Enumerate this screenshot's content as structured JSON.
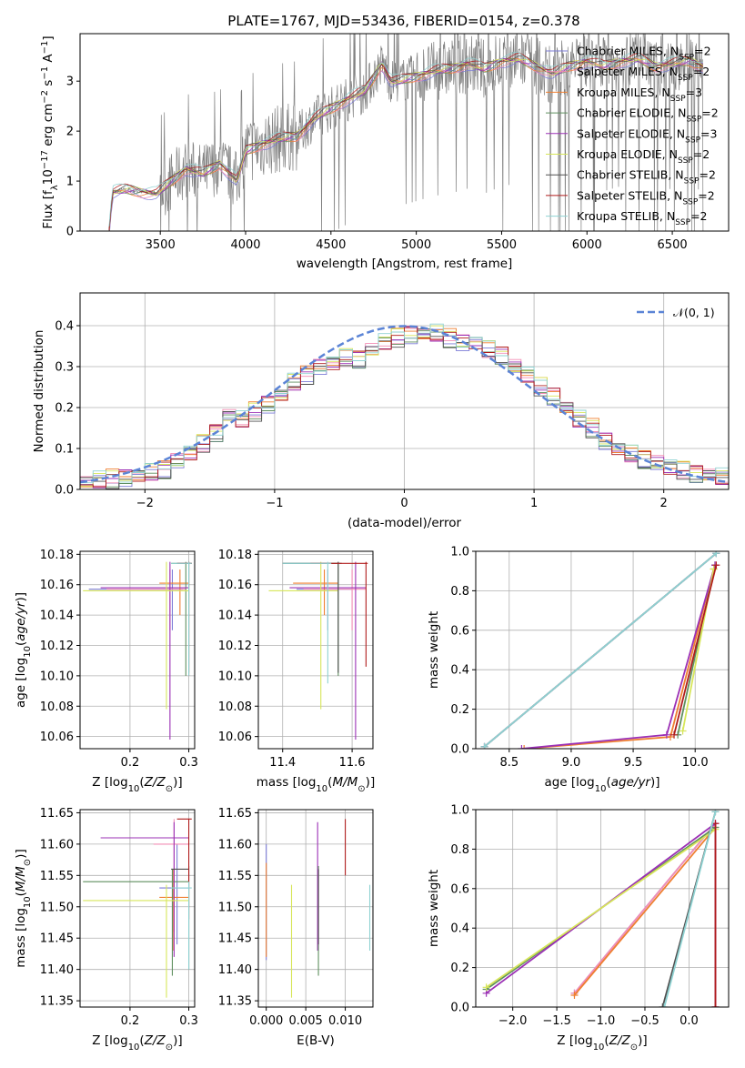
{
  "title": "PLATE=1767, MJD=53436, FIBERID=0154, z=0.378",
  "colors": {
    "Chabrier MILES": "#7b7bd6",
    "Salpeter MILES": "#f28db5",
    "Kroupa MILES": "#ef7f30",
    "Chabrier ELODIE": "#5f8f5f",
    "Salpeter ELODIE": "#9b30b5",
    "Kroupa ELODIE": "#d7e65a",
    "Chabrier STELIB": "#505050",
    "Salpeter STELIB": "#b01c1c",
    "Kroupa STELIB": "#8fd2d2",
    "data": "#808080",
    "gaussian": "#5b84d6"
  },
  "legend_models": [
    {
      "name": "Chabrier MILES",
      "nssp": "2"
    },
    {
      "name": "Salpeter MILES",
      "nssp": "2"
    },
    {
      "name": "Kroupa MILES",
      "nssp": "3"
    },
    {
      "name": "Chabrier ELODIE",
      "nssp": "2"
    },
    {
      "name": "Salpeter ELODIE",
      "nssp": "3"
    },
    {
      "name": "Kroupa ELODIE",
      "nssp": "2"
    },
    {
      "name": "Chabrier STELIB",
      "nssp": "2"
    },
    {
      "name": "Salpeter STELIB",
      "nssp": "2"
    },
    {
      "name": "Kroupa STELIB",
      "nssp": "2"
    }
  ],
  "chart_data": [
    {
      "id": "spectrum",
      "type": "line",
      "xlabel": "wavelength [Angstrom, rest frame]",
      "ylabel": "Flux [f_λ10^-17 erg cm^-2 s^-1 A^-1]",
      "xlim": [
        3030,
        6830
      ],
      "ylim": [
        0,
        3.95
      ],
      "xticks": [
        3500,
        4000,
        4500,
        5000,
        5500,
        6000,
        6500
      ],
      "yticks": [
        0,
        1,
        2,
        3
      ],
      "grid": false,
      "legend_position": "right",
      "continuum": [
        [
          3200,
          0.0
        ],
        [
          3220,
          0.78
        ],
        [
          3300,
          0.83
        ],
        [
          3400,
          0.78
        ],
        [
          3480,
          0.75
        ],
        [
          3550,
          0.95
        ],
        [
          3650,
          1.25
        ],
        [
          3750,
          1.15
        ],
        [
          3850,
          1.35
        ],
        [
          3950,
          1.0
        ],
        [
          4000,
          1.6
        ],
        [
          4100,
          1.75
        ],
        [
          4200,
          1.85
        ],
        [
          4300,
          1.9
        ],
        [
          4400,
          2.25
        ],
        [
          4500,
          2.45
        ],
        [
          4600,
          2.65
        ],
        [
          4700,
          2.8
        ],
        [
          4800,
          3.35
        ],
        [
          4850,
          3.0
        ],
        [
          4900,
          3.0
        ],
        [
          5000,
          3.1
        ],
        [
          5100,
          3.2
        ],
        [
          5200,
          3.25
        ],
        [
          5300,
          3.35
        ],
        [
          5400,
          3.25
        ],
        [
          5500,
          3.4
        ],
        [
          5600,
          3.45
        ],
        [
          5700,
          3.3
        ],
        [
          5800,
          3.15
        ],
        [
          5900,
          3.3
        ],
        [
          6000,
          3.4
        ],
        [
          6100,
          3.3
        ],
        [
          6200,
          3.4
        ],
        [
          6300,
          3.45
        ],
        [
          6400,
          3.3
        ],
        [
          6500,
          3.35
        ],
        [
          6600,
          3.4
        ],
        [
          6680,
          3.3
        ]
      ]
    },
    {
      "id": "residuals",
      "type": "line",
      "xlabel": "(data-model)/error",
      "ylabel": "Normed distribution",
      "xlim": [
        -2.5,
        2.5
      ],
      "ylim": [
        0,
        0.48
      ],
      "xticks": [
        -2,
        -1,
        0,
        1,
        2
      ],
      "yticks": [
        0.0,
        0.1,
        0.2,
        0.3,
        0.4
      ],
      "grid": true,
      "legend_position": "top-right",
      "gaussian_label": "𝒩(0, 1)",
      "bin_edges": [
        -2.5,
        -2.4,
        -2.3,
        -2.2,
        -2.1,
        -2.0,
        -1.9,
        -1.8,
        -1.7,
        -1.6,
        -1.5,
        -1.4,
        -1.3,
        -1.2,
        -1.1,
        -1.0,
        -0.9,
        -0.8,
        -0.7,
        -0.6,
        -0.5,
        -0.4,
        -0.3,
        -0.2,
        -0.1,
        0.0,
        0.1,
        0.2,
        0.3,
        0.4,
        0.5,
        0.6,
        0.7,
        0.8,
        0.9,
        1.0,
        1.1,
        1.2,
        1.3,
        1.4,
        1.5,
        1.6,
        1.7,
        1.8,
        1.9,
        2.0,
        2.1,
        2.2,
        2.3,
        2.4,
        2.5
      ],
      "hist_base": [
        0.018,
        0.022,
        0.026,
        0.03,
        0.034,
        0.04,
        0.05,
        0.07,
        0.09,
        0.11,
        0.14,
        0.18,
        0.17,
        0.19,
        0.21,
        0.23,
        0.26,
        0.28,
        0.3,
        0.31,
        0.32,
        0.32,
        0.34,
        0.36,
        0.37,
        0.38,
        0.38,
        0.38,
        0.37,
        0.36,
        0.36,
        0.34,
        0.33,
        0.3,
        0.28,
        0.25,
        0.23,
        0.2,
        0.17,
        0.15,
        0.12,
        0.1,
        0.085,
        0.075,
        0.065,
        0.055,
        0.045,
        0.04,
        0.035,
        0.03
      ]
    },
    {
      "id": "age-vs-Z",
      "type": "scatter",
      "xlabel": "Z [log10(Z/Z⊙)]",
      "ylabel": "age  [log10(age/yr)]",
      "xlim": [
        0.115,
        0.31
      ],
      "ylim": [
        10.052,
        10.182
      ],
      "xticks": [
        0.2,
        0.3
      ],
      "yticks": [
        10.06,
        10.08,
        10.1,
        10.12,
        10.14,
        10.16,
        10.18
      ],
      "grid": true,
      "points": [
        {
          "model": "Chabrier MILES",
          "x": 0.272,
          "y": 10.157,
          "xerr": [
            0.13,
            0.29
          ],
          "yerr": [
            10.13,
            10.17
          ]
        },
        {
          "model": "Salpeter MILES",
          "x": 0.268,
          "y": 10.157,
          "xerr": [
            0.16,
            0.295
          ],
          "yerr": [
            10.13,
            10.17
          ]
        },
        {
          "model": "Kroupa MILES",
          "x": 0.285,
          "y": 10.161,
          "xerr": [
            0.25,
            0.3
          ],
          "yerr": [
            10.14,
            10.17
          ]
        },
        {
          "model": "Chabrier ELODIE",
          "x": 0.295,
          "y": 10.174,
          "xerr": [
            0.27,
            0.3
          ],
          "yerr": [
            10.1,
            10.175
          ]
        },
        {
          "model": "Salpeter ELODIE",
          "x": 0.268,
          "y": 10.158,
          "xerr": [
            0.15,
            0.3
          ],
          "yerr": [
            10.058,
            10.175
          ]
        },
        {
          "model": "Kroupa ELODIE",
          "x": 0.262,
          "y": 10.156,
          "xerr": [
            0.12,
            0.3
          ],
          "yerr": [
            10.078,
            10.175
          ]
        },
        {
          "model": "Chabrier STELIB",
          "x": 0.3,
          "y": 10.174,
          "xerr": [
            0.28,
            0.305
          ],
          "yerr": [
            10.102,
            10.175
          ]
        },
        {
          "model": "Salpeter STELIB",
          "x": 0.3,
          "y": 10.174,
          "xerr": [
            0.28,
            0.305
          ],
          "yerr": [
            10.1,
            10.175
          ]
        },
        {
          "model": "Kroupa STELIB",
          "x": 0.3,
          "y": 10.174,
          "xerr": [
            0.27,
            0.305
          ],
          "yerr": [
            10.1,
            10.175
          ]
        }
      ]
    },
    {
      "id": "age-vs-mass",
      "type": "scatter",
      "xlabel": "mass [log10(M/M⊙)]",
      "ylabel": "",
      "xlim": [
        11.33,
        11.66
      ],
      "ylim": [
        10.052,
        10.182
      ],
      "xticks": [
        11.4,
        11.6
      ],
      "yticks": [
        10.06,
        10.08,
        10.1,
        10.12,
        10.14,
        10.16,
        10.18
      ],
      "grid": true,
      "points": [
        {
          "model": "Chabrier MILES",
          "x": 11.53,
          "y": 10.157,
          "xerr": [
            11.44,
            11.6
          ],
          "yerr": [
            10.13,
            10.17
          ]
        },
        {
          "model": "Salpeter MILES",
          "x": 11.6,
          "y": 10.157,
          "xerr": [
            11.46,
            11.64
          ],
          "yerr": [
            10.13,
            10.17
          ]
        },
        {
          "model": "Kroupa MILES",
          "x": 11.52,
          "y": 10.161,
          "xerr": [
            11.43,
            11.56
          ],
          "yerr": [
            10.14,
            10.17
          ]
        },
        {
          "model": "Chabrier ELODIE",
          "x": 11.56,
          "y": 10.174,
          "xerr": [
            11.4,
            11.56
          ],
          "yerr": [
            10.1,
            10.175
          ]
        },
        {
          "model": "Salpeter ELODIE",
          "x": 11.61,
          "y": 10.158,
          "xerr": [
            11.42,
            11.64
          ],
          "yerr": [
            10.058,
            10.175
          ]
        },
        {
          "model": "Kroupa ELODIE",
          "x": 11.51,
          "y": 10.156,
          "xerr": [
            11.36,
            11.56
          ],
          "yerr": [
            10.078,
            10.175
          ]
        },
        {
          "model": "Chabrier STELIB",
          "x": 11.56,
          "y": 10.174,
          "xerr": [
            11.4,
            11.57
          ],
          "yerr": [
            10.102,
            10.175
          ]
        },
        {
          "model": "Salpeter STELIB",
          "x": 11.64,
          "y": 10.174,
          "xerr": [
            11.48,
            11.645
          ],
          "yerr": [
            10.106,
            10.175
          ]
        },
        {
          "model": "Kroupa STELIB",
          "x": 11.53,
          "y": 10.174,
          "xerr": [
            11.4,
            11.54
          ],
          "yerr": [
            10.095,
            10.175
          ]
        }
      ]
    },
    {
      "id": "mass-weight-vs-age",
      "type": "line",
      "xlabel": "age  [log10(age/yr)]",
      "ylabel": "mass weight",
      "xlim": [
        8.23,
        10.27
      ],
      "ylim": [
        0,
        1.0
      ],
      "xticks": [
        8.5,
        9.0,
        9.5,
        10.0
      ],
      "yticks": [
        0.0,
        0.2,
        0.4,
        0.6,
        0.8,
        1.0
      ],
      "grid": true,
      "series": [
        {
          "model": "Chabrier MILES",
          "x": [
            8.3,
            10.17
          ],
          "y": [
            0.01,
            0.99
          ]
        },
        {
          "model": "Salpeter MILES",
          "x": [
            8.3,
            10.17
          ],
          "y": [
            0.01,
            0.99
          ]
        },
        {
          "model": "Kroupa MILES",
          "x": [
            8.62,
            9.8,
            10.15
          ],
          "y": [
            0.0,
            0.06,
            0.91
          ]
        },
        {
          "model": "Chabrier ELODIE",
          "x": [
            9.86,
            10.16
          ],
          "y": [
            0.07,
            0.93
          ]
        },
        {
          "model": "Salpeter ELODIE",
          "x": [
            8.6,
            9.77,
            10.16
          ],
          "y": [
            0.0,
            0.07,
            0.93
          ]
        },
        {
          "model": "Kroupa ELODIE",
          "x": [
            9.9,
            10.15
          ],
          "y": [
            0.09,
            0.91
          ]
        },
        {
          "model": "Chabrier STELIB",
          "x": [
            8.3,
            10.17
          ],
          "y": [
            0.01,
            0.99
          ]
        },
        {
          "model": "Salpeter STELIB",
          "x": [
            9.83,
            10.17
          ],
          "y": [
            0.07,
            0.93
          ]
        },
        {
          "model": "Kroupa STELIB",
          "x": [
            8.3,
            10.17
          ],
          "y": [
            0.01,
            0.99
          ]
        }
      ]
    },
    {
      "id": "mass-vs-Z",
      "type": "scatter",
      "xlabel": "Z [log10(Z/Z⊙)]",
      "ylabel": "mass [log10(M/M⊙)]",
      "xlim": [
        0.115,
        0.31
      ],
      "ylim": [
        11.34,
        11.655
      ],
      "xticks": [
        0.2,
        0.3
      ],
      "yticks": [
        11.35,
        11.4,
        11.45,
        11.5,
        11.55,
        11.6,
        11.65
      ],
      "grid": true,
      "points": [
        {
          "model": "Chabrier MILES",
          "x": 0.28,
          "y": 11.53,
          "xerr": [
            0.25,
            0.3
          ],
          "yerr": [
            11.44,
            11.6
          ]
        },
        {
          "model": "Salpeter MILES",
          "x": 0.275,
          "y": 11.6,
          "xerr": [
            0.24,
            0.3
          ],
          "yerr": [
            11.46,
            11.64
          ]
        },
        {
          "model": "Kroupa MILES",
          "x": 0.273,
          "y": 11.515,
          "xerr": [
            0.25,
            0.3
          ],
          "yerr": [
            11.43,
            11.56
          ]
        },
        {
          "model": "Chabrier ELODIE",
          "x": 0.272,
          "y": 11.54,
          "xerr": [
            0.12,
            0.3
          ],
          "yerr": [
            11.39,
            11.56
          ]
        },
        {
          "model": "Salpeter ELODIE",
          "x": 0.275,
          "y": 11.61,
          "xerr": [
            0.15,
            0.3
          ],
          "yerr": [
            11.42,
            11.635
          ]
        },
        {
          "model": "Kroupa ELODIE",
          "x": 0.262,
          "y": 11.51,
          "xerr": [
            0.12,
            0.3
          ],
          "yerr": [
            11.355,
            11.535
          ]
        },
        {
          "model": "Chabrier STELIB",
          "x": 0.3,
          "y": 11.56,
          "xerr": [
            0.27,
            0.3
          ],
          "yerr": [
            11.4,
            11.565
          ]
        },
        {
          "model": "Salpeter STELIB",
          "x": 0.3,
          "y": 11.64,
          "xerr": [
            0.28,
            0.305
          ],
          "yerr": [
            11.48,
            11.64
          ]
        },
        {
          "model": "Kroupa STELIB",
          "x": 0.3,
          "y": 11.53,
          "xerr": [
            0.27,
            0.305
          ],
          "yerr": [
            11.4,
            11.54
          ]
        }
      ]
    },
    {
      "id": "mass-vs-ebv",
      "type": "scatter",
      "xlabel": "E(B-V)",
      "ylabel": "",
      "xlim": [
        -0.001,
        0.0135
      ],
      "ylim": [
        11.34,
        11.655
      ],
      "xticks": [
        0.0,
        0.005,
        0.01
      ],
      "yticks": [
        11.35,
        11.4,
        11.45,
        11.5,
        11.55,
        11.6,
        11.65
      ],
      "grid": true,
      "points": [
        {
          "model": "Chabrier MILES",
          "x": 0.0,
          "y": 11.53,
          "yerr": [
            11.415,
            11.6
          ]
        },
        {
          "model": "Kroupa MILES",
          "x": 0.0,
          "y": 11.5,
          "yerr": [
            11.42,
            11.57
          ]
        },
        {
          "model": "Kroupa ELODIE",
          "x": 0.0032,
          "y": 11.5,
          "yerr": [
            11.355,
            11.535
          ]
        },
        {
          "model": "Salpeter ELODIE",
          "x": 0.0065,
          "y": 11.61,
          "yerr": [
            11.43,
            11.635
          ]
        },
        {
          "model": "Chabrier ELODIE",
          "x": 0.0066,
          "y": 11.5,
          "yerr": [
            11.39,
            11.565
          ]
        },
        {
          "model": "Chabrier STELIB",
          "x": 0.0066,
          "y": 11.53,
          "yerr": [
            11.44,
            11.56
          ]
        },
        {
          "model": "Salpeter STELIB",
          "x": 0.01,
          "y": 11.6,
          "yerr": [
            11.55,
            11.64
          ]
        },
        {
          "model": "Kroupa STELIB",
          "x": 0.0131,
          "y": 11.5,
          "yerr": [
            11.43,
            11.535
          ]
        }
      ]
    },
    {
      "id": "mass-weight-vs-Z",
      "type": "line",
      "xlabel": "Z [log10(Z/Z⊙)]",
      "ylabel": "mass weight",
      "xlim": [
        -2.42,
        0.45
      ],
      "ylim": [
        0,
        1.0
      ],
      "xticks": [
        -2.0,
        -1.5,
        -1.0,
        -0.5,
        0.0
      ],
      "yticks": [
        0.0,
        0.2,
        0.4,
        0.6,
        0.8,
        1.0
      ],
      "grid": true,
      "series": [
        {
          "model": "Chabrier MILES",
          "x": [
            -1.3,
            0.3
          ],
          "y": [
            0.07,
            0.93
          ]
        },
        {
          "model": "Salpeter MILES",
          "x": [
            -1.3,
            0.3
          ],
          "y": [
            0.07,
            0.93
          ]
        },
        {
          "model": "Kroupa MILES",
          "x": [
            -1.3,
            0.3,
            0.3
          ],
          "y": [
            0.06,
            0.91,
            0.0
          ]
        },
        {
          "model": "Chabrier ELODIE",
          "x": [
            -2.3,
            0.3
          ],
          "y": [
            0.09,
            0.91
          ]
        },
        {
          "model": "Salpeter ELODIE",
          "x": [
            -2.3,
            0.3,
            0.3
          ],
          "y": [
            0.07,
            0.93,
            0.0
          ]
        },
        {
          "model": "Kroupa ELODIE",
          "x": [
            -2.3,
            0.3
          ],
          "y": [
            0.1,
            0.9
          ]
        },
        {
          "model": "Chabrier STELIB",
          "x": [
            -0.3,
            0.3
          ],
          "y": [
            0.0,
            0.99
          ]
        },
        {
          "model": "Salpeter STELIB",
          "x": [
            0.3,
            0.3
          ],
          "y": [
            0.0,
            0.93
          ]
        },
        {
          "model": "Kroupa STELIB",
          "x": [
            -0.28,
            0.3
          ],
          "y": [
            0.0,
            0.99
          ]
        }
      ]
    }
  ]
}
